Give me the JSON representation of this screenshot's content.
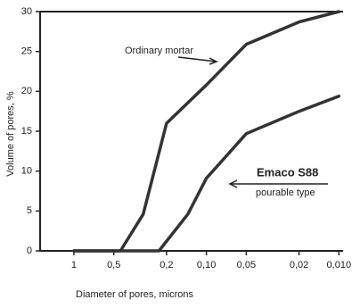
{
  "chart_data": {
    "type": "line",
    "ylabel": "Volume of pores, %",
    "xlabel": "Diameter of pores, microns",
    "xscale": "log",
    "xlim": [
      1.8,
      0.0093
    ],
    "ylim": [
      0,
      30
    ],
    "xticks": [
      1,
      {
        "value": 0.5,
        "label": "0,5"
      },
      {
        "value": 0.2,
        "label": "0,2"
      },
      {
        "value": 0.1,
        "label": "0,10"
      },
      {
        "value": 0.05,
        "label": "0,05"
      },
      {
        "value": 0.02,
        "label": "0,02"
      },
      {
        "value": 0.01,
        "label": "0,010"
      }
    ],
    "yticks": [
      0,
      5,
      10,
      15,
      20,
      25,
      30
    ],
    "annotations": [
      "Ordinary mortar",
      "Emaco S88",
      "pourable type"
    ],
    "series": [
      {
        "name": "Ordinary mortar",
        "color": "#333333",
        "x": [
          1,
          0.445,
          0.3,
          0.2,
          0.1,
          0.05,
          0.02,
          0.01
        ],
        "values": [
          0,
          0,
          4.6,
          16,
          20.8,
          25.9,
          28.7,
          30
        ]
      },
      {
        "name": "Emaco S88",
        "color": "#333333",
        "x": [
          1,
          0.228,
          0.138,
          0.1,
          0.05,
          0.02,
          0.01
        ],
        "values": [
          0,
          0,
          4.6,
          9.1,
          14.7,
          17.5,
          19.4
        ]
      }
    ]
  }
}
